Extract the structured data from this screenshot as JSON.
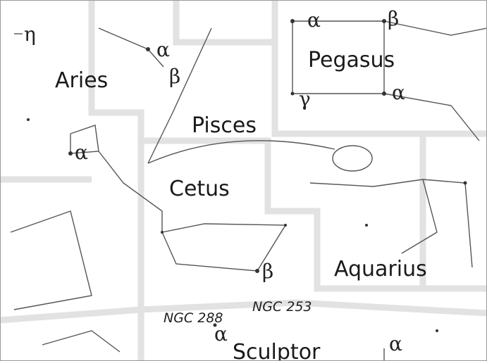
{
  "constellations": [
    "Aries",
    "Pegasus",
    "Pisces",
    "Cetus",
    "Aquarius",
    "Sculptor"
  ],
  "stars": [
    "η",
    "α",
    "β",
    "α",
    "β",
    "γ",
    "α",
    "α",
    "β",
    "α",
    "α"
  ],
  "objects": [
    "NGC 288",
    "NGC 253"
  ]
}
